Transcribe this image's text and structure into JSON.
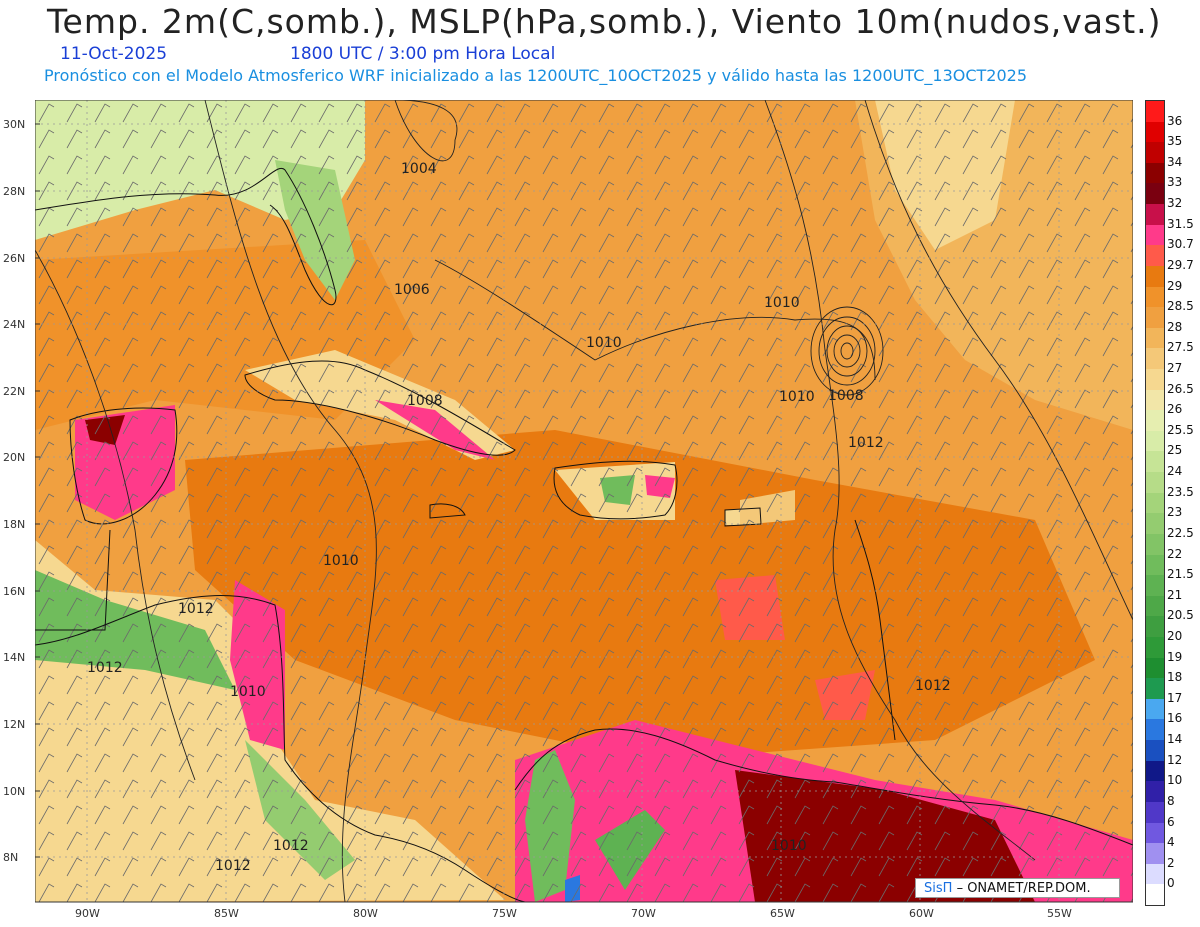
{
  "header": {
    "title": "Temp. 2m(C,somb.), MSLP(hPa,somb.), Viento 10m(nudos,vast.)",
    "date": "11-Oct-2025",
    "time": "1800 UTC / 3:00 pm Hora Local",
    "subtitle": "Pronóstico con el Modelo Atmosferico WRF inicializado a las 1200UTC_10OCT2025 y válido hasta las  1200UTC_13OCT2025"
  },
  "map": {
    "lat_labels": [
      "30N",
      "28N",
      "26N",
      "24N",
      "22N",
      "20N",
      "18N",
      "16N",
      "14N",
      "12N",
      "10N",
      "8N"
    ],
    "lon_labels": [
      "90W",
      "85W",
      "80W",
      "75W",
      "70W",
      "65W",
      "60W",
      "55W"
    ],
    "isobar_labels": [
      "1004",
      "1006",
      "1008",
      "1010",
      "1010",
      "1010",
      "1008",
      "1012",
      "1010",
      "1012",
      "1012",
      "1010",
      "1012",
      "1012",
      "1010",
      "1012"
    ]
  },
  "legend": {
    "labels": [
      "36",
      "35",
      "34",
      "33",
      "32",
      "31.5",
      "30.7",
      "29.7",
      "29",
      "28.5",
      "28",
      "27.5",
      "27",
      "26.5",
      "26",
      "25.5",
      "25",
      "24",
      "23.5",
      "23",
      "22.5",
      "22",
      "21.5",
      "21",
      "20.5",
      "20",
      "19",
      "18",
      "17",
      "16",
      "14",
      "12",
      "10",
      "8",
      "6",
      "4",
      "2",
      "0"
    ],
    "colors": [
      "#ff1a1a",
      "#e00000",
      "#c00000",
      "#8b0000",
      "#7a0010",
      "#c8104a",
      "#ff3a8a",
      "#ff5a4a",
      "#e87a10",
      "#f0922a",
      "#f0a040",
      "#f2b55a",
      "#f4c878",
      "#f6d890",
      "#f2e6a8",
      "#e6eeb0",
      "#d8eca8",
      "#c6e496",
      "#b6dc88",
      "#a4d47a",
      "#94cc70",
      "#82c466",
      "#70bc5c",
      "#5eb252",
      "#4ea848",
      "#3e9e40",
      "#2e9a38",
      "#1e8e30",
      "#1e9a50",
      "#4aa8f0",
      "#2a78e0",
      "#1a50c0",
      "#101888",
      "#3020a8",
      "#5038c8",
      "#7058e0",
      "#a090f0",
      "#dcdcff"
    ]
  },
  "credit": {
    "brand": "SisΠ",
    "org": "– ONAMET/REP.DOM."
  }
}
